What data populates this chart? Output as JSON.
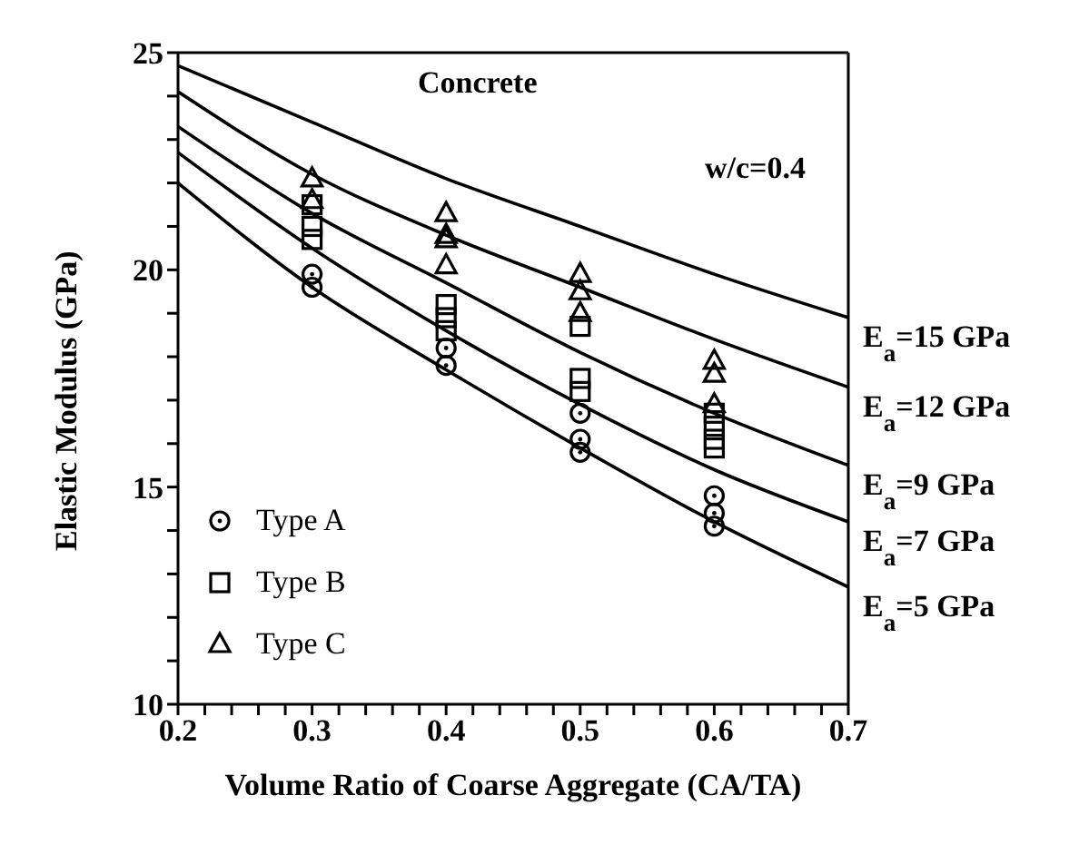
{
  "chart_data": {
    "type": "line",
    "xlabel": "Volume Ratio of Coarse Aggregate (CA/TA)",
    "ylabel": "Elastic Modulus (GPa)",
    "annotations": [
      "Concrete",
      "w/c=0.4"
    ],
    "xlim": [
      0.2,
      0.7
    ],
    "ylim": [
      10,
      25
    ],
    "xticks": [
      0.2,
      {
        "value": 0.22,
        "label": null
      },
      {
        "value": 0.24,
        "label": null
      },
      {
        "value": 0.26,
        "label": null
      },
      {
        "value": 0.28,
        "label": null
      },
      0.3,
      {
        "value": 0.32,
        "label": null
      },
      {
        "value": 0.34,
        "label": null
      },
      {
        "value": 0.36,
        "label": null
      },
      {
        "value": 0.38,
        "label": null
      },
      0.4,
      {
        "value": 0.42,
        "label": null
      },
      {
        "value": 0.44,
        "label": null
      },
      {
        "value": 0.46,
        "label": null
      },
      {
        "value": 0.48,
        "label": null
      },
      0.5,
      {
        "value": 0.52,
        "label": null
      },
      {
        "value": 0.54,
        "label": null
      },
      {
        "value": 0.56,
        "label": null
      },
      {
        "value": 0.58,
        "label": null
      },
      0.6,
      {
        "value": 0.62,
        "label": null
      },
      {
        "value": 0.64,
        "label": null
      },
      {
        "value": 0.66,
        "label": null
      },
      {
        "value": 0.68,
        "label": null
      },
      0.7
    ],
    "yticks": [
      10,
      {
        "value": 11,
        "label": null
      },
      {
        "value": 12,
        "label": null
      },
      {
        "value": 13,
        "label": null
      },
      {
        "value": 14,
        "label": null
      },
      15,
      {
        "value": 16,
        "label": null
      },
      {
        "value": 17,
        "label": null
      },
      {
        "value": 18,
        "label": null
      },
      {
        "value": 19,
        "label": null
      },
      20,
      {
        "value": 21,
        "label": null
      },
      {
        "value": 22,
        "label": null
      },
      {
        "value": 23,
        "label": null
      },
      {
        "value": 24,
        "label": null
      },
      25
    ],
    "legend": "bottom left",
    "line_style": "solid",
    "series": [
      {
        "name": "E$_{a}$=15 GPa",
        "marker": "none",
        "color": "#000000",
        "x": [
          0.2,
          0.3,
          0.4,
          0.5,
          0.6,
          0.7
        ],
        "values": [
          24.7,
          23.4,
          22.1,
          21.0,
          19.9,
          18.9
        ]
      },
      {
        "name": "E$_{a}$=12 GPa",
        "marker": "none",
        "color": "#000000",
        "x": [
          0.2,
          0.3,
          0.4,
          0.5,
          0.6,
          0.7
        ],
        "values": [
          24.1,
          22.2,
          20.8,
          19.6,
          18.4,
          17.3
        ]
      },
      {
        "name": "E$_{a}$=9 GPa",
        "marker": "none",
        "color": "#000000",
        "x": [
          0.2,
          0.3,
          0.4,
          0.5,
          0.6,
          0.7
        ],
        "values": [
          23.3,
          21.3,
          19.7,
          18.1,
          16.7,
          15.5
        ]
      },
      {
        "name": "E$_{a}$=7 GPa",
        "marker": "none",
        "color": "#000000",
        "x": [
          0.2,
          0.3,
          0.4,
          0.5,
          0.6,
          0.7
        ],
        "values": [
          22.7,
          20.5,
          18.6,
          16.9,
          15.4,
          14.2
        ]
      },
      {
        "name": "E$_{a}$=5 GPa",
        "marker": "none",
        "color": "#000000",
        "x": [
          0.2,
          0.3,
          0.4,
          0.5,
          0.6,
          0.7
        ],
        "values": [
          22.0,
          19.6,
          17.7,
          15.9,
          14.2,
          12.7
        ]
      },
      {
        "name": "Type A",
        "type": "scatter",
        "marker": "circle",
        "color": "#000000",
        "x": [
          0.3,
          0.3,
          0.4,
          0.4,
          0.5,
          0.5,
          0.5,
          0.6,
          0.6,
          0.6
        ],
        "values": [
          19.9,
          19.6,
          18.2,
          17.8,
          16.7,
          16.1,
          15.8,
          14.8,
          14.4,
          14.1
        ]
      },
      {
        "name": "Type B",
        "type": "scatter",
        "marker": "square",
        "color": "#000000",
        "x": [
          0.3,
          0.3,
          0.3,
          0.4,
          0.4,
          0.4,
          0.5,
          0.5,
          0.5,
          0.6,
          0.6,
          0.6,
          0.6
        ],
        "values": [
          21.5,
          21.0,
          20.7,
          19.2,
          18.9,
          18.6,
          18.7,
          17.5,
          17.2,
          16.7,
          16.4,
          16.1,
          15.9
        ]
      },
      {
        "name": "Type C",
        "type": "scatter",
        "marker": "triangle",
        "color": "#000000",
        "x": [
          0.3,
          0.3,
          0.4,
          0.4,
          0.4,
          0.4,
          0.5,
          0.5,
          0.5,
          0.6,
          0.6,
          0.6
        ],
        "values": [
          22.1,
          21.6,
          21.3,
          20.8,
          20.7,
          20.1,
          19.9,
          19.5,
          19.0,
          17.9,
          17.6,
          16.9
        ]
      }
    ]
  }
}
